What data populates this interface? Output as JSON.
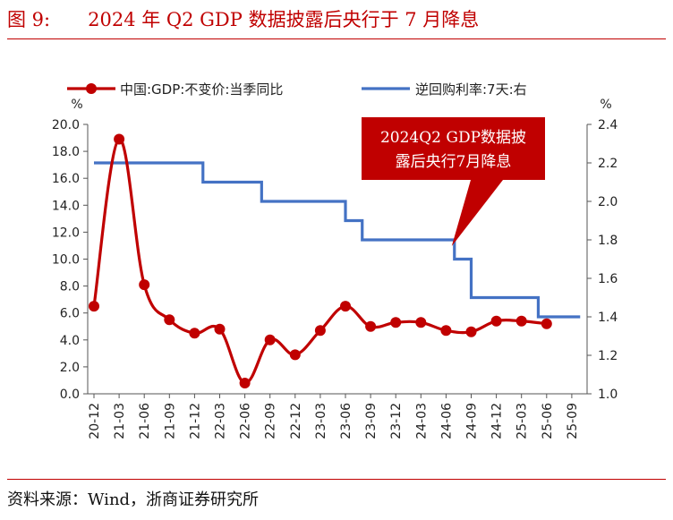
{
  "header": {
    "title": "图 9:　　2024 年 Q2 GDP 数据披露后央行于 7 月降息"
  },
  "footer": {
    "source": "资料来源：Wind，浙商证券研究所"
  },
  "colors": {
    "accent": "#c00000",
    "series_gdp": "#c00000",
    "series_rate": "#4472c4",
    "callout_bg": "#c00000"
  },
  "chart_data": {
    "type": "line",
    "categories": [
      "20-12",
      "21-03",
      "21-06",
      "21-09",
      "21-12",
      "22-03",
      "22-06",
      "22-09",
      "22-12",
      "23-03",
      "23-06",
      "23-09",
      "23-12",
      "24-03",
      "24-06",
      "24-09",
      "24-12",
      "25-03",
      "25-06",
      "25-09"
    ],
    "left_axis": {
      "unit": "%",
      "range": [
        0,
        20
      ],
      "ticks": [
        "0.0",
        "2.0",
        "4.0",
        "6.0",
        "8.0",
        "10.0",
        "12.0",
        "14.0",
        "16.0",
        "18.0",
        "20.0"
      ]
    },
    "right_axis": {
      "unit": "%",
      "range": [
        1.0,
        2.4
      ],
      "ticks": [
        "1.0",
        "1.2",
        "1.4",
        "1.6",
        "1.8",
        "2.0",
        "2.2",
        "2.4"
      ]
    },
    "legend": {
      "placement": "top"
    },
    "series": [
      {
        "name": "中国:GDP:不变价:当季同比",
        "axis": "left",
        "style": "line-markers",
        "points": [
          {
            "x": "20-12",
            "y": 6.5
          },
          {
            "x": "21-03",
            "y": 18.9
          },
          {
            "x": "21-06",
            "y": 8.1
          },
          {
            "x": "21-09",
            "y": 5.5
          },
          {
            "x": "21-12",
            "y": 4.5
          },
          {
            "x": "22-03",
            "y": 4.8
          },
          {
            "x": "22-06",
            "y": 0.8
          },
          {
            "x": "22-09",
            "y": 4.0
          },
          {
            "x": "22-12",
            "y": 2.9
          },
          {
            "x": "23-03",
            "y": 4.7
          },
          {
            "x": "23-06",
            "y": 6.5
          },
          {
            "x": "23-09",
            "y": 5.0
          },
          {
            "x": "23-12",
            "y": 5.3
          },
          {
            "x": "24-03",
            "y": 5.3
          },
          {
            "x": "24-06",
            "y": 4.7
          },
          {
            "x": "24-09",
            "y": 4.6
          },
          {
            "x": "24-12",
            "y": 5.4
          },
          {
            "x": "25-03",
            "y": 5.4
          },
          {
            "x": "25-06",
            "y": 5.2
          }
        ]
      },
      {
        "name": "逆回购利率:7天:右",
        "axis": "right",
        "style": "step",
        "steps": [
          {
            "from": "20-12",
            "to": "22-01",
            "value": 2.2
          },
          {
            "from": "22-01",
            "to": "22-08",
            "value": 2.1
          },
          {
            "from": "22-08",
            "to": "23-06",
            "value": 2.0
          },
          {
            "from": "23-06",
            "to": "23-08",
            "value": 1.9
          },
          {
            "from": "23-08",
            "to": "24-07",
            "value": 1.8
          },
          {
            "from": "24-07",
            "to": "24-09",
            "value": 1.7
          },
          {
            "from": "24-09",
            "to": "25-05",
            "value": 1.5
          },
          {
            "from": "25-05",
            "to": "25-10",
            "value": 1.4
          }
        ]
      }
    ],
    "annotations": [
      {
        "lines": [
          "2024Q2 GDP数据披",
          "露后央行7月降息"
        ],
        "points_to": "24-07"
      }
    ]
  }
}
